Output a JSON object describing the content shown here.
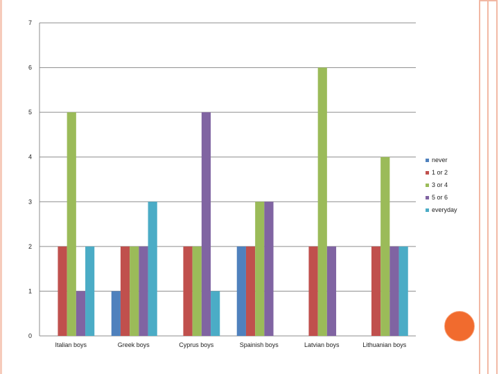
{
  "chart_data": {
    "type": "bar",
    "title": "",
    "xlabel": "",
    "ylabel": "",
    "ylim": [
      0,
      7
    ],
    "yticks": [
      "0",
      "1",
      "2",
      "3",
      "4",
      "5",
      "6",
      "7"
    ],
    "grid": true,
    "legend_position": "right",
    "categories": [
      "Italian boys",
      "Greek boys",
      "Cyprus boys",
      "Spainish boys",
      "Latvian boys",
      "Lithuanian boys"
    ],
    "series": [
      {
        "name": "never",
        "color": "#4f81bd",
        "values": [
          0,
          1,
          0,
          2,
          0,
          0
        ]
      },
      {
        "name": "1 or 2",
        "color": "#c0504d",
        "values": [
          2,
          2,
          2,
          2,
          2,
          2
        ]
      },
      {
        "name": "3 or 4",
        "color": "#9bbb59",
        "values": [
          5,
          2,
          2,
          3,
          6,
          4
        ]
      },
      {
        "name": "5 or 6",
        "color": "#8064a2",
        "values": [
          1,
          2,
          5,
          3,
          2,
          2
        ]
      },
      {
        "name": "everyday",
        "color": "#4bacc6",
        "values": [
          2,
          3,
          1,
          0,
          0,
          2
        ]
      }
    ]
  }
}
